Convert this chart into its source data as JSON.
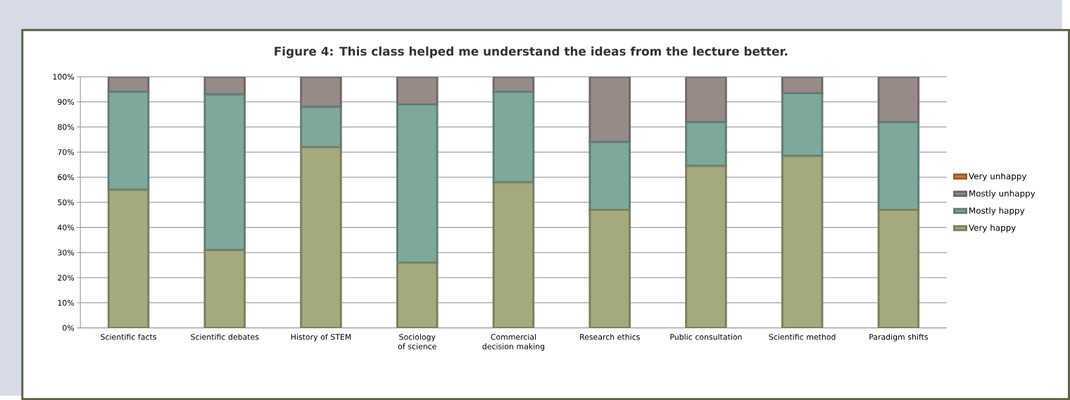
{
  "chart_data": {
    "type": "bar",
    "stacked": true,
    "title": "Figure 4: This class helped me understand the ideas from the lecture better.",
    "categories": [
      "Scientific facts",
      "Scientific debates",
      "History of STEM",
      "Sociology of science",
      "Commercial decision making",
      "Research ethics",
      "Public consultation",
      "Scientific method",
      "Paradigm shifts"
    ],
    "series": [
      {
        "name": "Very happy",
        "color": "#a4aa7e",
        "values": [
          55,
          31,
          72,
          26,
          58,
          47,
          64.5,
          68.5,
          47
        ]
      },
      {
        "name": "Mostly happy",
        "color": "#7ea89c",
        "values": [
          39,
          62,
          16,
          63,
          36,
          27,
          17.5,
          25,
          35
        ]
      },
      {
        "name": "Mostly unhappy",
        "color": "#978b88",
        "values": [
          6,
          7,
          12,
          11,
          6,
          26,
          18,
          6.5,
          18
        ]
      },
      {
        "name": "Very unhappy",
        "color": "#d07a3c",
        "values": [
          0,
          0,
          0,
          0,
          0,
          0,
          0,
          0,
          0
        ]
      }
    ],
    "ylim": [
      0,
      100
    ],
    "yticks": [
      {
        "value": 0,
        "label": "0%"
      },
      {
        "value": 10,
        "label": "10%"
      },
      {
        "value": 20,
        "label": "20%"
      },
      {
        "value": 30,
        "label": "30%"
      },
      {
        "value": 40,
        "label": "40%"
      },
      {
        "value": 50,
        "label": "50%"
      },
      {
        "value": 60,
        "label": "60%"
      },
      {
        "value": 70,
        "label": "70%"
      },
      {
        "value": 80,
        "label": "80%"
      },
      {
        "value": 90,
        "label": "90%"
      },
      {
        "value": 100,
        "label": "100%"
      }
    ],
    "grid": "y",
    "legend": "right"
  }
}
